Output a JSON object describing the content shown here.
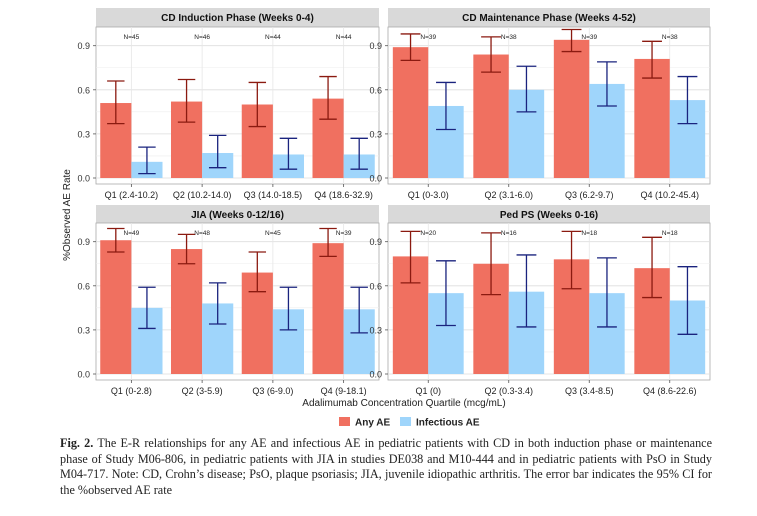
{
  "figure": {
    "ylabel": "%Observed AE Rate",
    "xlabel": "Adalimumab Concentration Quartile (mcg/mL)",
    "legend": [
      {
        "label": "Any AE",
        "color": "#f07060"
      },
      {
        "label": "Infectious AE",
        "color": "#9fd5fb"
      }
    ]
  },
  "chart_data": [
    {
      "type": "bar",
      "title": "CD Induction Phase (Weeks 0-4)",
      "categories": [
        "Q1 (2.4-10.2)",
        "Q2 (10.2-14.0)",
        "Q3 (14.0-18.5)",
        "Q4 (18.6-32.9)"
      ],
      "n_labels": [
        "N=45",
        "N=46",
        "N=44",
        "N=44"
      ],
      "ylim": [
        0,
        1.0
      ],
      "yticks": [
        0.0,
        0.3,
        0.6,
        0.9
      ],
      "series": [
        {
          "name": "Any AE",
          "values": [
            0.51,
            0.52,
            0.5,
            0.54
          ],
          "ci_low": [
            0.37,
            0.38,
            0.35,
            0.4
          ],
          "ci_high": [
            0.66,
            0.67,
            0.65,
            0.69
          ]
        },
        {
          "name": "Infectious AE",
          "values": [
            0.11,
            0.17,
            0.16,
            0.16
          ],
          "ci_low": [
            0.03,
            0.07,
            0.06,
            0.06
          ],
          "ci_high": [
            0.21,
            0.29,
            0.27,
            0.27
          ]
        }
      ]
    },
    {
      "type": "bar",
      "title": "CD Maintenance Phase (Weeks 4-52)",
      "categories": [
        "Q1 (0-3.0)",
        "Q2 (3.1-6.0)",
        "Q3 (6.2-9.7)",
        "Q4 (10.2-45.4)"
      ],
      "n_labels": [
        "N=39",
        "N=38",
        "N=39",
        "N=38"
      ],
      "ylim": [
        0,
        1.0
      ],
      "yticks": [
        0.0,
        0.3,
        0.6,
        0.9
      ],
      "series": [
        {
          "name": "Any AE",
          "values": [
            0.89,
            0.84,
            0.94,
            0.81
          ],
          "ci_low": [
            0.8,
            0.72,
            0.86,
            0.68
          ],
          "ci_high": [
            0.98,
            0.96,
            1.01,
            0.93
          ]
        },
        {
          "name": "Infectious AE",
          "values": [
            0.49,
            0.6,
            0.64,
            0.53
          ],
          "ci_low": [
            0.33,
            0.45,
            0.49,
            0.37
          ],
          "ci_high": [
            0.65,
            0.76,
            0.79,
            0.69
          ]
        }
      ]
    },
    {
      "type": "bar",
      "title": "JIA (Weeks 0-12/16)",
      "categories": [
        "Q1 (0-2.8)",
        "Q2 (3-5.9)",
        "Q3 (6-9.0)",
        "Q4 (9-18.1)"
      ],
      "n_labels": [
        "N=49",
        "N=48",
        "N=45",
        "N=39"
      ],
      "ylim": [
        0,
        1.0
      ],
      "yticks": [
        0.0,
        0.3,
        0.6,
        0.9
      ],
      "series": [
        {
          "name": "Any AE",
          "values": [
            0.91,
            0.85,
            0.69,
            0.89
          ],
          "ci_low": [
            0.83,
            0.75,
            0.56,
            0.8
          ],
          "ci_high": [
            0.99,
            0.95,
            0.83,
            0.99
          ]
        },
        {
          "name": "Infectious AE",
          "values": [
            0.45,
            0.48,
            0.44,
            0.44
          ],
          "ci_low": [
            0.31,
            0.34,
            0.3,
            0.28
          ],
          "ci_high": [
            0.59,
            0.62,
            0.59,
            0.59
          ]
        }
      ]
    },
    {
      "type": "bar",
      "title": "Ped PS (Weeks 0-16)",
      "categories": [
        "Q1 (0)",
        "Q2 (0.3-3.4)",
        "Q3 (3.4-8.5)",
        "Q4 (8.6-22.6)"
      ],
      "n_labels": [
        "N=20",
        "N=16",
        "N=18",
        "N=18"
      ],
      "ylim": [
        0,
        1.0
      ],
      "yticks": [
        0.0,
        0.3,
        0.6,
        0.9
      ],
      "series": [
        {
          "name": "Any AE",
          "values": [
            0.8,
            0.75,
            0.78,
            0.72
          ],
          "ci_low": [
            0.62,
            0.54,
            0.58,
            0.52
          ],
          "ci_high": [
            0.97,
            0.96,
            0.97,
            0.93
          ]
        },
        {
          "name": "Infectious AE",
          "values": [
            0.55,
            0.56,
            0.55,
            0.5
          ],
          "ci_low": [
            0.33,
            0.32,
            0.32,
            0.27
          ],
          "ci_high": [
            0.77,
            0.81,
            0.79,
            0.73
          ]
        }
      ]
    }
  ],
  "caption": {
    "label": "Fig. 2.",
    "text": "The E-R relationships for any AE and infectious AE in pediatric patients with CD in both induction phase or maintenance phase of Study M06-806, in pediatric patients with JIA in studies DE038 and M10-444 and in pediatric patients with PsO in Study M04-717. Note: CD, Crohn’s disease; PsO, plaque psoriasis; JIA, juvenile idiopathic arthritis. The error bar indicates the 95% CI for the %observed AE rate"
  }
}
